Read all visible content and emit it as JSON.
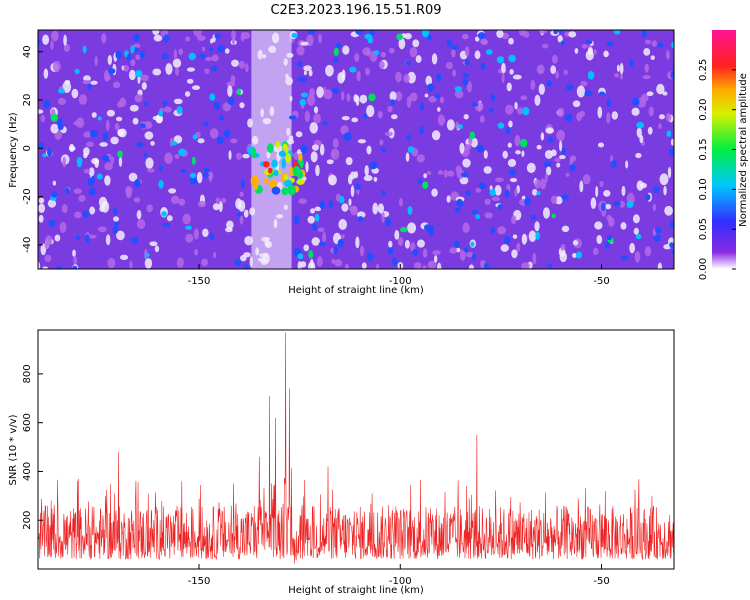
{
  "figure_title": "C2E3.2023.196.15.51.R09",
  "colors": {
    "snr_line": "#ee2222",
    "axis": "#000000",
    "spectrogram_bg": "#7a3be0"
  },
  "chart_data": [
    {
      "type": "heatmap",
      "xlabel": "Height of straight line (km)",
      "ylabel": "Frequency (Hz)",
      "xlim": [
        -190,
        -32
      ],
      "ylim": [
        -50,
        49
      ],
      "x_ticks": [
        -150,
        -100,
        -50
      ],
      "y_ticks": [
        -40,
        -20,
        0,
        20,
        40
      ],
      "colorbar": {
        "label": "Normalized spectral amplitude",
        "range": [
          0.0,
          0.3
        ],
        "ticks": [
          "0.00",
          "0.05",
          "0.10",
          "0.15",
          "0.20",
          "0.25"
        ],
        "colormap": "rainbow (white-violet-blue-cyan-green-yellow-red-magenta)"
      },
      "features": [
        {
          "label": "low-amplitude vertical band",
          "x_range": [
            -137,
            -127
          ],
          "amplitude": 0.0
        },
        {
          "label": "high-amplitude cluster",
          "x_range": [
            -137,
            -124
          ],
          "y_range": [
            -20,
            0
          ],
          "max_amplitude": 0.25
        }
      ],
      "grid": false
    },
    {
      "type": "line",
      "xlabel": "Height of straight line (km)",
      "ylabel": "SNR (10 * v/v)",
      "xlim": [
        -190,
        -32
      ],
      "ylim": [
        0,
        980
      ],
      "x_ticks": [
        -150,
        -100,
        -50
      ],
      "y_ticks": [
        200,
        400,
        600,
        800
      ],
      "baseline_range": [
        40,
        260
      ],
      "peaks": [
        {
          "x": -128.5,
          "y": 970
        },
        {
          "x": -127.5,
          "y": 740
        },
        {
          "x": -132.5,
          "y": 710
        },
        {
          "x": -131,
          "y": 620
        },
        {
          "x": -170,
          "y": 480
        },
        {
          "x": -135,
          "y": 460
        },
        {
          "x": -118,
          "y": 420
        },
        {
          "x": -81,
          "y": 550
        }
      ],
      "grid": false
    }
  ]
}
